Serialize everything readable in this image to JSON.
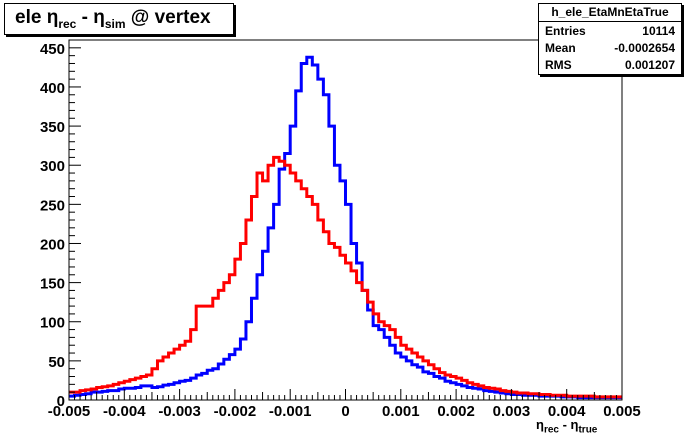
{
  "title": {
    "main_a": "ele ",
    "eta1": "η",
    "sub1": "rec",
    "mid": " - ",
    "eta2": "η",
    "sub2": "sim",
    "tail": " @ vertex"
  },
  "stats": {
    "name": "h_ele_EtaMnEtaTrue",
    "rows": [
      {
        "label": "Entries",
        "value": "10114"
      },
      {
        "label": "Mean",
        "value": "-0.0002654"
      },
      {
        "label": "RMS",
        "value": "0.001207"
      }
    ]
  },
  "xaxis_label": {
    "a": "η",
    "sub_a": "rec",
    "mid": " - η",
    "sub_b": "true"
  },
  "colors": {
    "blue": "#0000ff",
    "red": "#ff0000",
    "frame": "#000000"
  },
  "chart_data": {
    "type": "histogram",
    "xlim": [
      -0.005,
      0.005
    ],
    "ylim": [
      0,
      460
    ],
    "xticks": [
      "-0.005",
      "-0.004",
      "-0.003",
      "-0.002",
      "-0.001",
      "0",
      "0.001",
      "0.002",
      "0.003",
      "0.004",
      "0.005"
    ],
    "yticks": [
      "0",
      "50",
      "100",
      "150",
      "200",
      "250",
      "300",
      "350",
      "400",
      "450"
    ],
    "bin_width": 0.0001,
    "series": [
      {
        "color": "blue",
        "values": [
          5,
          6,
          7,
          8,
          10,
          10,
          11,
          12,
          12,
          14,
          15,
          15,
          16,
          18,
          18,
          16,
          17,
          19,
          20,
          22,
          24,
          25,
          28,
          32,
          34,
          38,
          40,
          46,
          52,
          58,
          65,
          78,
          100,
          130,
          160,
          190,
          220,
          250,
          295,
          315,
          350,
          395,
          430,
          438,
          428,
          410,
          390,
          350,
          300,
          280,
          250,
          200,
          175,
          140,
          115,
          95,
          90,
          80,
          70,
          60,
          55,
          50,
          45,
          42,
          36,
          34,
          30,
          28,
          24,
          22,
          20,
          18,
          16,
          15,
          14,
          12,
          11,
          10,
          9,
          8,
          7,
          7,
          6,
          6,
          6,
          5,
          5,
          5,
          5,
          4,
          4,
          4,
          3,
          3,
          3,
          3,
          3,
          3,
          3,
          3
        ]
      },
      {
        "color": "red",
        "values": [
          10,
          10,
          12,
          13,
          14,
          16,
          17,
          18,
          20,
          22,
          24,
          26,
          28,
          30,
          32,
          40,
          50,
          55,
          60,
          65,
          70,
          75,
          90,
          120,
          120,
          120,
          130,
          140,
          150,
          160,
          180,
          200,
          230,
          260,
          290,
          280,
          300,
          310,
          305,
          300,
          290,
          280,
          270,
          260,
          250,
          230,
          215,
          200,
          195,
          185,
          175,
          165,
          150,
          140,
          125,
          110,
          100,
          95,
          90,
          80,
          70,
          65,
          60,
          55,
          50,
          45,
          40,
          35,
          32,
          30,
          28,
          25,
          22,
          20,
          18,
          16,
          15,
          14,
          12,
          11,
          10,
          9,
          9,
          8,
          8,
          7,
          7,
          6,
          6,
          6,
          5,
          5,
          5,
          5,
          5,
          4,
          4,
          4,
          4,
          4
        ]
      }
    ]
  }
}
